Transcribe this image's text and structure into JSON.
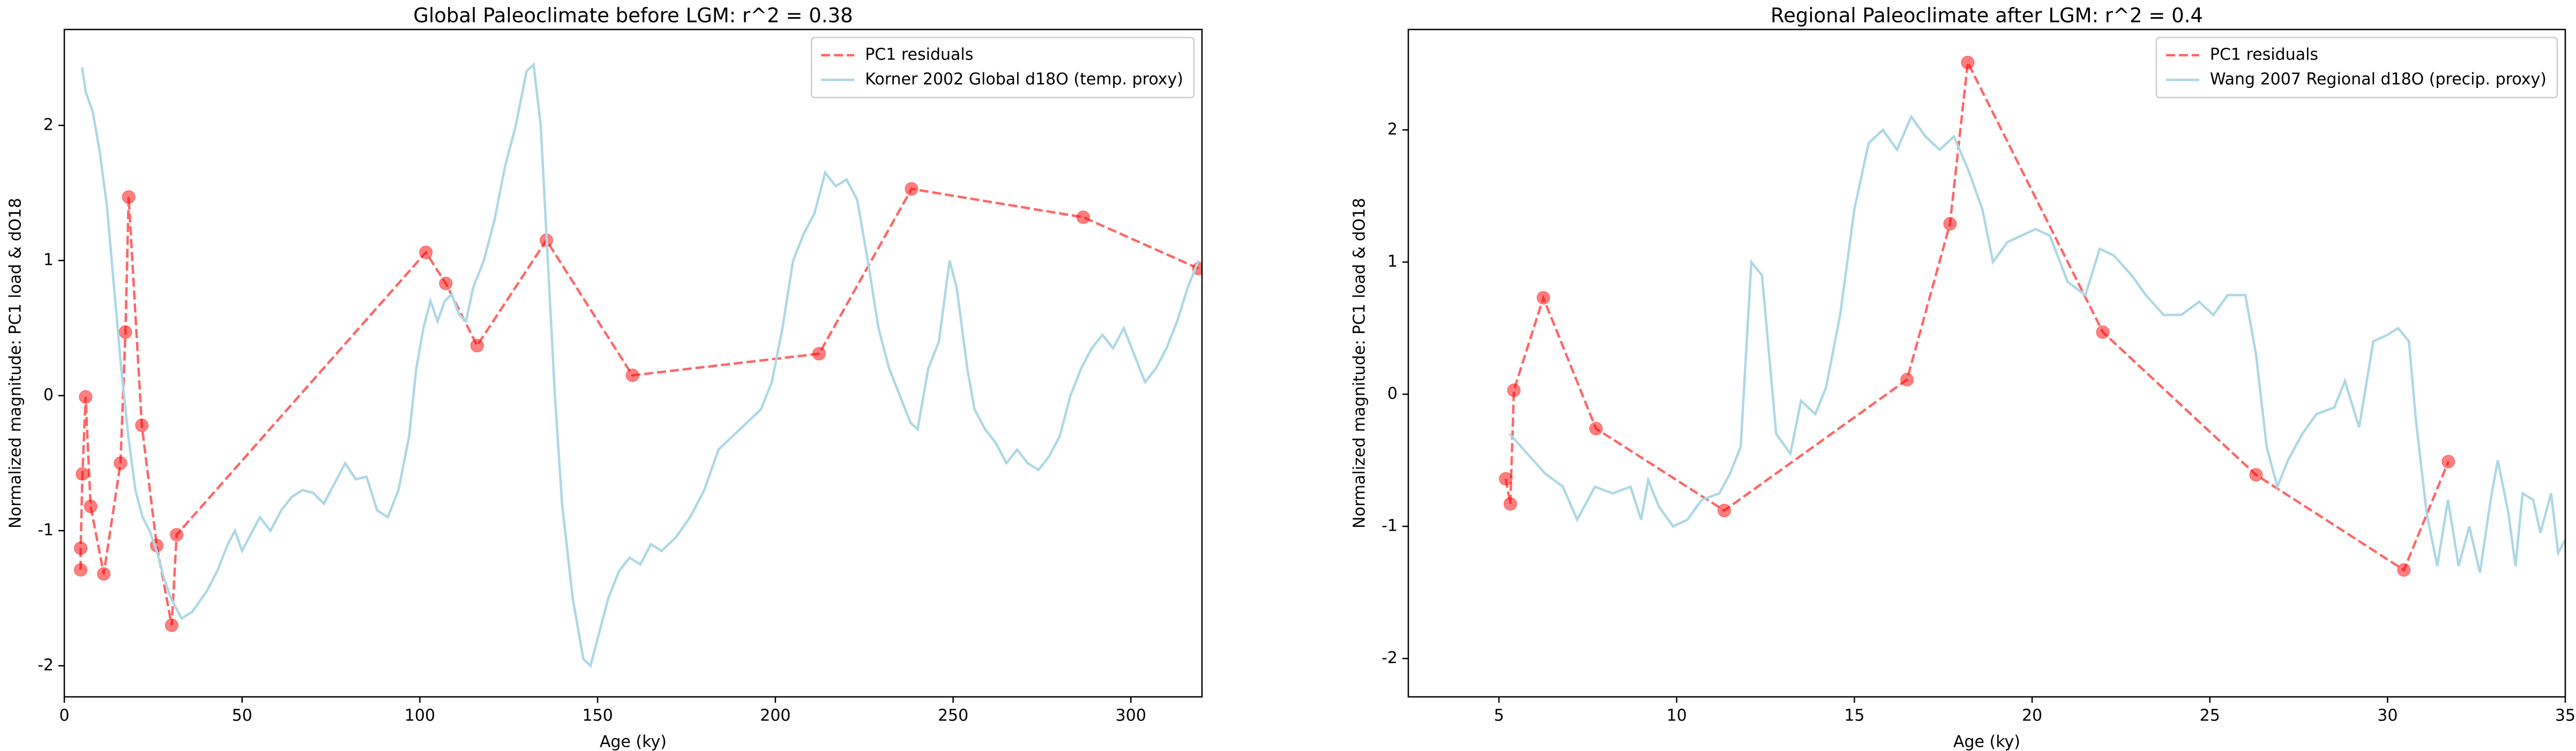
{
  "chart_data": [
    {
      "type": "line",
      "title": "Global Paleoclimate before LGM: r^2 = 0.38",
      "xlabel": "Age (ky)",
      "ylabel": "Normalized magnitude: PC1 load & dO18",
      "xlim": [
        0,
        320
      ],
      "xticks": [
        0,
        50,
        100,
        150,
        200,
        250,
        300
      ],
      "ylim": [
        -2.23,
        2.71
      ],
      "yticks": [
        -2,
        -1,
        0,
        1,
        2
      ],
      "legend": "upper right",
      "series": [
        {
          "name": "PC1 residuals",
          "color": "#ff0000",
          "linestyle": "dashed",
          "marker": "circle",
          "x": [
            4.6,
            4.6,
            5.1,
            6.0,
            7.4,
            11.1,
            15.8,
            17.2,
            18.1,
            21.8,
            26.0,
            30.2,
            31.6,
            101.7,
            107.3,
            116.1,
            135.6,
            159.8,
            212.3,
            238.3,
            286.6,
            319.1
          ],
          "values": [
            -1.29,
            -1.13,
            -0.58,
            -0.01,
            -0.82,
            -1.32,
            -0.5,
            0.47,
            1.47,
            -0.22,
            -1.11,
            -1.7,
            -1.03,
            1.06,
            0.83,
            0.37,
            1.15,
            0.15,
            0.31,
            1.53,
            1.32,
            0.94
          ]
        },
        {
          "name": "Korner 2002 Global d18O (temp. proxy)",
          "color": "#add8e6",
          "linestyle": "solid",
          "x": [
            5,
            6,
            8,
            10,
            12,
            14,
            16,
            18,
            20,
            22,
            24,
            26,
            28,
            30,
            33,
            36,
            40,
            43,
            46,
            48,
            50,
            52,
            55,
            58,
            61,
            64,
            67,
            70,
            73,
            76,
            79,
            82,
            85,
            88,
            91,
            94,
            97,
            99,
            101,
            103,
            105,
            107,
            109,
            111,
            113,
            115,
            118,
            121,
            124,
            127,
            130,
            132,
            134,
            136,
            138,
            140,
            143,
            146,
            148,
            150,
            153,
            156,
            159,
            162,
            165,
            168,
            172,
            176,
            180,
            184,
            188,
            192,
            196,
            199,
            202,
            205,
            208,
            211,
            214,
            217,
            220,
            223,
            226,
            229,
            232,
            235,
            238,
            240,
            243,
            246,
            249,
            251,
            254,
            256,
            259,
            262,
            265,
            268,
            271,
            274,
            277,
            280,
            283,
            286,
            289,
            292,
            295,
            298,
            301,
            304,
            307,
            310,
            313,
            316,
            319
          ],
          "values": [
            2.43,
            2.25,
            2.1,
            1.8,
            1.4,
            0.8,
            0.2,
            -0.3,
            -0.7,
            -0.9,
            -1.0,
            -1.15,
            -1.35,
            -1.5,
            -1.65,
            -1.6,
            -1.45,
            -1.3,
            -1.1,
            -1.0,
            -1.15,
            -1.05,
            -0.9,
            -1.0,
            -0.85,
            -0.75,
            -0.7,
            -0.72,
            -0.8,
            -0.65,
            -0.5,
            -0.62,
            -0.6,
            -0.85,
            -0.9,
            -0.7,
            -0.3,
            0.2,
            0.5,
            0.7,
            0.55,
            0.7,
            0.75,
            0.6,
            0.55,
            0.8,
            1.0,
            1.3,
            1.7,
            2.0,
            2.4,
            2.45,
            2.0,
            1.0,
            0.0,
            -0.8,
            -1.5,
            -1.95,
            -2.0,
            -1.8,
            -1.5,
            -1.3,
            -1.2,
            -1.25,
            -1.1,
            -1.15,
            -1.05,
            -0.9,
            -0.7,
            -0.4,
            -0.3,
            -0.2,
            -0.1,
            0.1,
            0.5,
            1.0,
            1.2,
            1.35,
            1.65,
            1.55,
            1.6,
            1.45,
            1.0,
            0.5,
            0.2,
            0.0,
            -0.2,
            -0.25,
            0.2,
            0.4,
            1.0,
            0.8,
            0.2,
            -0.1,
            -0.25,
            -0.35,
            -0.5,
            -0.4,
            -0.5,
            -0.55,
            -0.45,
            -0.3,
            0.0,
            0.2,
            0.35,
            0.45,
            0.35,
            0.5,
            0.3,
            0.1,
            0.2,
            0.35,
            0.55,
            0.8,
            1.0
          ]
        }
      ]
    },
    {
      "type": "line",
      "title": "Regional Paleoclimate after LGM: r^2 = 0.4",
      "xlabel": "Age (ky)",
      "ylabel": "Normalized magnitude: PC1 load & dO18",
      "xlim": [
        2.45,
        35
      ],
      "xticks": [
        5,
        10,
        15,
        20,
        25,
        30,
        35
      ],
      "ylim": [
        -2.29,
        2.76
      ],
      "yticks": [
        -2,
        -1,
        0,
        1,
        2
      ],
      "legend": "upper right",
      "series": [
        {
          "name": "PC1 residuals",
          "color": "#ff0000",
          "linestyle": "dashed",
          "marker": "circle",
          "x": [
            5.19,
            5.32,
            5.42,
            6.25,
            7.73,
            11.34,
            16.48,
            17.69,
            18.19,
            21.99,
            26.3,
            30.46,
            31.71
          ],
          "values": [
            -0.64,
            -0.83,
            0.03,
            0.73,
            -0.26,
            -0.88,
            0.11,
            1.29,
            2.51,
            0.47,
            -0.61,
            -1.33,
            -0.51
          ]
        },
        {
          "name": "Wang 2007 Regional d18O (precip. proxy)",
          "color": "#add8e6",
          "linestyle": "solid",
          "x": [
            5.3,
            5.8,
            6.3,
            6.8,
            7.2,
            7.7,
            8.2,
            8.7,
            9.0,
            9.2,
            9.5,
            9.9,
            10.3,
            10.7,
            11.2,
            11.5,
            11.8,
            12.1,
            12.4,
            12.8,
            13.2,
            13.5,
            13.9,
            14.2,
            14.6,
            15.0,
            15.4,
            15.8,
            16.2,
            16.6,
            17.0,
            17.4,
            17.8,
            18.2,
            18.6,
            18.9,
            19.3,
            19.7,
            20.1,
            20.5,
            21.0,
            21.5,
            21.9,
            22.3,
            22.8,
            23.2,
            23.7,
            24.2,
            24.7,
            25.1,
            25.5,
            26.0,
            26.3,
            26.6,
            26.9,
            27.2,
            27.6,
            28.0,
            28.5,
            28.8,
            29.2,
            29.6,
            30.0,
            30.3,
            30.6,
            30.8,
            31.1,
            31.4,
            31.7,
            32.0,
            32.3,
            32.6,
            32.9,
            33.1,
            33.4,
            33.6,
            33.8,
            34.1,
            34.3,
            34.6,
            34.8,
            35
          ],
          "values": [
            -0.3,
            -0.45,
            -0.6,
            -0.7,
            -0.95,
            -0.7,
            -0.75,
            -0.7,
            -0.95,
            -0.65,
            -0.85,
            -1.0,
            -0.95,
            -0.8,
            -0.75,
            -0.6,
            -0.4,
            1.0,
            0.9,
            -0.3,
            -0.45,
            -0.05,
            -0.15,
            0.05,
            0.6,
            1.4,
            1.9,
            2.0,
            1.85,
            2.1,
            1.95,
            1.85,
            1.95,
            1.7,
            1.4,
            1.0,
            1.15,
            1.2,
            1.25,
            1.2,
            0.85,
            0.75,
            1.1,
            1.05,
            0.9,
            0.75,
            0.6,
            0.6,
            0.7,
            0.6,
            0.75,
            0.75,
            0.3,
            -0.4,
            -0.7,
            -0.5,
            -0.3,
            -0.15,
            -0.1,
            0.1,
            -0.25,
            0.4,
            0.45,
            0.5,
            0.4,
            -0.2,
            -0.9,
            -1.3,
            -0.8,
            -1.3,
            -1.0,
            -1.35,
            -0.8,
            -0.5,
            -0.9,
            -1.3,
            -0.75,
            -0.8,
            -1.05,
            -0.75,
            -1.2,
            -1.1
          ]
        }
      ]
    }
  ]
}
